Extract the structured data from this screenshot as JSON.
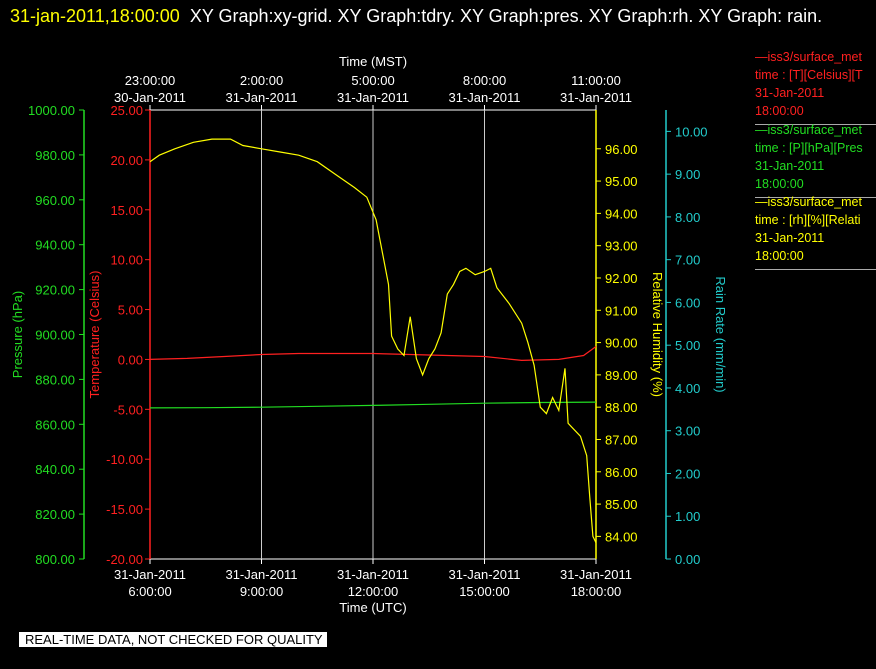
{
  "header": {
    "timestamp": "31-jan-2011,18:00:00",
    "graphs": "XY Graph:xy-grid.  XY Graph:tdry.  XY Graph:pres.  XY Graph:rh.  XY Graph: rain."
  },
  "banner": "REAL-TIME DATA, NOT CHECKED FOR QUALITY",
  "legend": [
    {
      "line1": "—iss3/surface_met",
      "line2": "time : [T][Celsius][T",
      "line3": "31-Jan-2011",
      "line4": "18:00:00",
      "color": "#ff2020"
    },
    {
      "line1": "—iss3/surface_met",
      "line2": "time : [P][hPa][Pres",
      "line3": "31-Jan-2011",
      "line4": "18:00:00",
      "color": "#22dd22"
    },
    {
      "line1": "—iss3/surface_met",
      "line2": "time : [rh][%][Relati",
      "line3": "31-Jan-2011",
      "line4": "18:00:00",
      "color": "#ffff00"
    }
  ],
  "chart_data": {
    "type": "line",
    "x_bottom": {
      "label": "Time (UTC)",
      "range": [
        "31-Jan-2011 06:00",
        "31-Jan-2011 18:00"
      ],
      "ticks": [
        {
          "date": "31-Jan-2011",
          "time": "6:00:00",
          "t": "31-Jan-2011 06:00"
        },
        {
          "date": "31-Jan-2011",
          "time": "9:00:00",
          "t": "31-Jan-2011 09:00"
        },
        {
          "date": "31-Jan-2011",
          "time": "12:00:00",
          "t": "31-Jan-2011 12:00"
        },
        {
          "date": "31-Jan-2011",
          "time": "15:00:00",
          "t": "31-Jan-2011 15:00"
        },
        {
          "date": "31-Jan-2011",
          "time": "18:00:00",
          "t": "31-Jan-2011 18:00"
        }
      ]
    },
    "x_top": {
      "label": "Time (MST)",
      "ticks": [
        {
          "time": "23:00:00",
          "date": "30-Jan-2011",
          "t": "30-Jan-2011 23:00"
        },
        {
          "time": "2:00:00",
          "date": "31-Jan-2011",
          "t": "31-Jan-2011 02:00"
        },
        {
          "time": "5:00:00",
          "date": "31-Jan-2011",
          "t": "31-Jan-2011 05:00"
        },
        {
          "time": "8:00:00",
          "date": "31-Jan-2011",
          "t": "31-Jan-2011 08:00"
        },
        {
          "time": "11:00:00",
          "date": "31-Jan-2011",
          "t": "31-Jan-2011 11:00"
        }
      ]
    },
    "grid": "vertical",
    "axes": [
      {
        "id": "pres",
        "label": "Pressure (hPa)",
        "range": [
          800,
          1000
        ],
        "color": "#22dd22",
        "ticks": [
          "800.00",
          "820.00",
          "840.00",
          "860.00",
          "880.00",
          "900.00",
          "920.00",
          "940.00",
          "960.00",
          "980.00",
          "1000.00"
        ]
      },
      {
        "id": "temp",
        "label": "Temperature (Celsius)",
        "range": [
          -20,
          25
        ],
        "color": "#ff2020",
        "ticks": [
          "-20.00",
          "-15.00",
          "-10.00",
          "-5.00",
          "0.00",
          "5.00",
          "10.00",
          "15.00",
          "20.00",
          "25.00"
        ]
      },
      {
        "id": "rh",
        "label": "Relative Humidity (%)",
        "range": [
          83.3,
          97.2
        ],
        "color": "#ffff00",
        "ticks": [
          "84.00",
          "85.00",
          "86.00",
          "87.00",
          "88.00",
          "89.00",
          "90.00",
          "91.00",
          "92.00",
          "93.00",
          "94.00",
          "95.00",
          "96.00"
        ]
      },
      {
        "id": "rain",
        "label": "Rain Rate (mm/min)",
        "range": [
          0,
          10.5
        ],
        "color": "#22cccc",
        "ticks": [
          "0.00",
          "1.00",
          "2.00",
          "3.00",
          "4.00",
          "5.00",
          "6.00",
          "7.00",
          "8.00",
          "9.00",
          "10.00"
        ]
      }
    ],
    "series": [
      {
        "axis": "temp",
        "color": "#ff2020",
        "points": [
          [
            "31-Jan-2011 06:00",
            0.0
          ],
          [
            "31-Jan-2011 07:00",
            0.1
          ],
          [
            "31-Jan-2011 08:00",
            0.3
          ],
          [
            "31-Jan-2011 09:00",
            0.5
          ],
          [
            "31-Jan-2011 10:00",
            0.6
          ],
          [
            "31-Jan-2011 11:00",
            0.6
          ],
          [
            "31-Jan-2011 12:00",
            0.6
          ],
          [
            "31-Jan-2011 13:00",
            0.5
          ],
          [
            "31-Jan-2011 14:00",
            0.4
          ],
          [
            "31-Jan-2011 15:00",
            0.3
          ],
          [
            "31-Jan-2011 16:00",
            -0.1
          ],
          [
            "31-Jan-2011 17:00",
            0.0
          ],
          [
            "31-Jan-2011 17:40",
            0.4
          ],
          [
            "31-Jan-2011 18:00",
            1.3
          ]
        ]
      },
      {
        "axis": "pres",
        "color": "#22dd22",
        "points": [
          [
            "31-Jan-2011 06:00",
            867.3
          ],
          [
            "31-Jan-2011 07:30",
            867.4
          ],
          [
            "31-Jan-2011 09:00",
            867.6
          ],
          [
            "31-Jan-2011 10:30",
            868.0
          ],
          [
            "31-Jan-2011 12:00",
            868.4
          ],
          [
            "31-Jan-2011 13:30",
            868.9
          ],
          [
            "31-Jan-2011 15:00",
            869.4
          ],
          [
            "31-Jan-2011 16:30",
            869.7
          ],
          [
            "31-Jan-2011 18:00",
            869.9
          ]
        ]
      },
      {
        "axis": "rh",
        "color": "#ffff00",
        "points": [
          [
            "31-Jan-2011 06:00",
            95.6
          ],
          [
            "31-Jan-2011 06:15",
            95.8
          ],
          [
            "31-Jan-2011 06:40",
            96.0
          ],
          [
            "31-Jan-2011 07:10",
            96.2
          ],
          [
            "31-Jan-2011 07:40",
            96.3
          ],
          [
            "31-Jan-2011 08:10",
            96.3
          ],
          [
            "31-Jan-2011 08:30",
            96.1
          ],
          [
            "31-Jan-2011 09:00",
            96.0
          ],
          [
            "31-Jan-2011 09:30",
            95.9
          ],
          [
            "31-Jan-2011 10:00",
            95.8
          ],
          [
            "31-Jan-2011 10:30",
            95.6
          ],
          [
            "31-Jan-2011 11:00",
            95.2
          ],
          [
            "31-Jan-2011 11:30",
            94.8
          ],
          [
            "31-Jan-2011 11:50",
            94.5
          ],
          [
            "31-Jan-2011 12:05",
            93.8
          ],
          [
            "31-Jan-2011 12:15",
            92.8
          ],
          [
            "31-Jan-2011 12:25",
            91.8
          ],
          [
            "31-Jan-2011 12:30",
            90.2
          ],
          [
            "31-Jan-2011 12:40",
            89.8
          ],
          [
            "31-Jan-2011 12:50",
            89.6
          ],
          [
            "31-Jan-2011 13:00",
            90.8
          ],
          [
            "31-Jan-2011 13:10",
            89.5
          ],
          [
            "31-Jan-2011 13:20",
            89.0
          ],
          [
            "31-Jan-2011 13:30",
            89.5
          ],
          [
            "31-Jan-2011 13:40",
            89.8
          ],
          [
            "31-Jan-2011 13:50",
            90.3
          ],
          [
            "31-Jan-2011 14:00",
            91.5
          ],
          [
            "31-Jan-2011 14:10",
            91.8
          ],
          [
            "31-Jan-2011 14:20",
            92.2
          ],
          [
            "31-Jan-2011 14:30",
            92.3
          ],
          [
            "31-Jan-2011 14:45",
            92.1
          ],
          [
            "31-Jan-2011 15:00",
            92.2
          ],
          [
            "31-Jan-2011 15:10",
            92.3
          ],
          [
            "31-Jan-2011 15:20",
            91.7
          ],
          [
            "31-Jan-2011 15:40",
            91.2
          ],
          [
            "31-Jan-2011 16:00",
            90.6
          ],
          [
            "31-Jan-2011 16:10",
            90.0
          ],
          [
            "31-Jan-2011 16:20",
            89.3
          ],
          [
            "31-Jan-2011 16:30",
            88.0
          ],
          [
            "31-Jan-2011 16:40",
            87.8
          ],
          [
            "31-Jan-2011 16:50",
            88.3
          ],
          [
            "31-Jan-2011 17:00",
            87.9
          ],
          [
            "31-Jan-2011 17:10",
            89.2
          ],
          [
            "31-Jan-2011 17:15",
            87.5
          ],
          [
            "31-Jan-2011 17:25",
            87.3
          ],
          [
            "31-Jan-2011 17:35",
            87.1
          ],
          [
            "31-Jan-2011 17:45",
            86.5
          ],
          [
            "31-Jan-2011 17:50",
            85.2
          ],
          [
            "31-Jan-2011 17:55",
            84.0
          ],
          [
            "31-Jan-2011 18:00",
            83.8
          ]
        ]
      }
    ]
  }
}
